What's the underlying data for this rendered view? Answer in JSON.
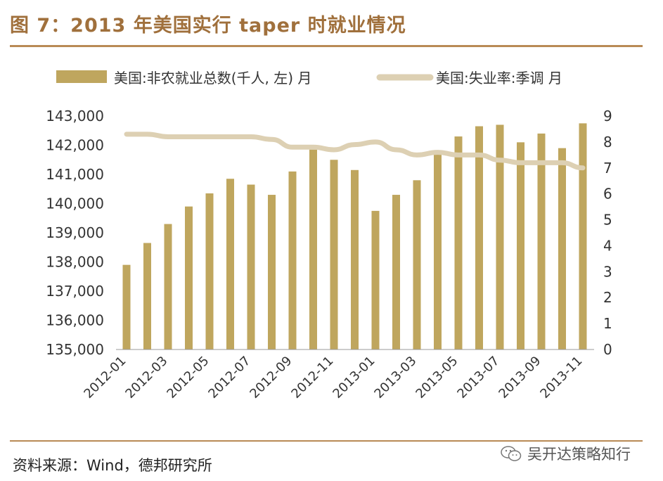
{
  "title": "图 7：2013 年美国实行 taper 时就业情况",
  "source": "资料来源：Wind，德邦研究所",
  "watermark": "吴开达策略知行",
  "chart_data": {
    "type": "bar+line",
    "categories": [
      "2012-01",
      "2012-02",
      "2012-03",
      "2012-04",
      "2012-05",
      "2012-06",
      "2012-07",
      "2012-08",
      "2012-09",
      "2012-10",
      "2012-11",
      "2012-12",
      "2013-01",
      "2013-02",
      "2013-03",
      "2013-04",
      "2013-05",
      "2013-06",
      "2013-07",
      "2013-08",
      "2013-09",
      "2013-10",
      "2013-11"
    ],
    "x_tick_labels": [
      "2012-01",
      "2012-03",
      "2012-05",
      "2012-07",
      "2012-09",
      "2012-11",
      "2013-01",
      "2013-03",
      "2013-05",
      "2013-07",
      "2013-09",
      "2013-11"
    ],
    "series": [
      {
        "name": "美国:非农就业总数(千人, 左) 月",
        "type": "bar",
        "axis": "left",
        "color": "#bfa65e",
        "values": [
          137900,
          138650,
          139300,
          139900,
          140350,
          140850,
          140650,
          140300,
          141100,
          141850,
          141500,
          141150,
          139750,
          140300,
          140800,
          141750,
          142300,
          142650,
          142700,
          142100,
          142400,
          141900,
          142750
        ]
      },
      {
        "name": "美国:失业率:季调  月",
        "type": "line",
        "axis": "right",
        "color": "#ddd0b3",
        "values": [
          8.3,
          8.3,
          8.2,
          8.2,
          8.2,
          8.2,
          8.2,
          8.1,
          7.8,
          7.8,
          7.7,
          7.9,
          8.0,
          7.7,
          7.5,
          7.6,
          7.5,
          7.5,
          7.3,
          7.2,
          7.2,
          7.2,
          7.0
        ]
      }
    ],
    "y_left": {
      "min": 135000,
      "max": 143000,
      "ticks": [
        "135,000",
        "136,000",
        "137,000",
        "138,000",
        "139,000",
        "140,000",
        "141,000",
        "142,000",
        "143,000"
      ]
    },
    "y_right": {
      "min": 0,
      "max": 9,
      "ticks": [
        "0",
        "1",
        "2",
        "3",
        "4",
        "5",
        "6",
        "7",
        "8",
        "9"
      ]
    },
    "legend_position": "top"
  }
}
